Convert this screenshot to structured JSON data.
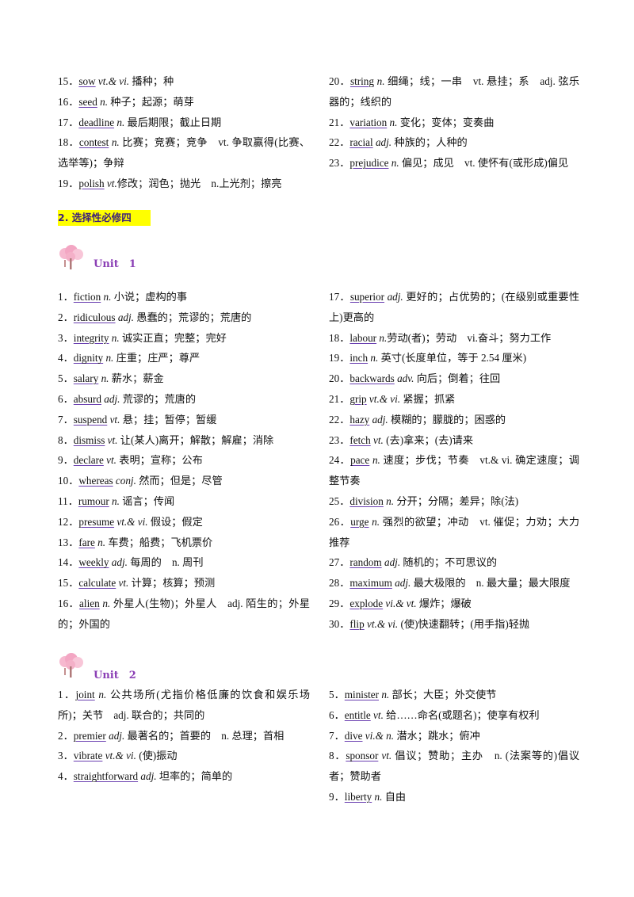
{
  "top_block": {
    "left": [
      {
        "num": "15．",
        "word": "sow",
        "pos": "vt.& vi.",
        "def": " 播种；种"
      },
      {
        "num": "16．",
        "word": "seed",
        "pos": "n.",
        "def": " 种子；起源；萌芽"
      },
      {
        "num": "17．",
        "word": "deadline",
        "pos": "n.",
        "def": " 最后期限；截止日期"
      },
      {
        "num": "18．",
        "word": "contest",
        "pos": "n.",
        "def": " 比赛；竞赛；竞争　vt. 争取赢得(比赛、选举等)；争辩"
      },
      {
        "num": "19．",
        "word": "polish",
        "pos": "vt.",
        "def": "修改；润色；抛光　n.上光剂；擦亮"
      }
    ],
    "right": [
      {
        "num": "20．",
        "word": "string",
        "pos": "n.",
        "def": " 细绳；线；一串　vt. 悬挂；系　adj. 弦乐器的；线织的"
      },
      {
        "num": "21．",
        "word": "variation",
        "pos": "n.",
        "def": " 变化；变体；变奏曲"
      },
      {
        "num": "22．",
        "word": "racial",
        "pos": "adj.",
        "def": " 种族的；人种的"
      },
      {
        "num": "23．",
        "word": "prejudice",
        "pos": "n.",
        "def": " 偏见；成见　vt. 使怀有(或形成)偏见"
      }
    ]
  },
  "section_title": "2. 选择性必修四",
  "unit1": {
    "label": "Unit　1",
    "left": [
      {
        "num": "1．",
        "word": "fiction",
        "pos": "n.",
        "def": " 小说；虚构的事"
      },
      {
        "num": "2．",
        "word": "ridiculous",
        "pos": "adj.",
        "def": " 愚蠢的；荒谬的；荒唐的"
      },
      {
        "num": "3．",
        "word": "integrity",
        "pos": "n.",
        "def": " 诚实正直；完整；完好"
      },
      {
        "num": "4．",
        "word": "dignity",
        "pos": "n.",
        "def": " 庄重；庄严；尊严"
      },
      {
        "num": "5．",
        "word": "salary",
        "pos": "n.",
        "def": " 薪水；薪金"
      },
      {
        "num": "6．",
        "word": "absurd",
        "pos": "adj.",
        "def": " 荒谬的；荒唐的"
      },
      {
        "num": "7．",
        "word": "suspend",
        "pos": "vt.",
        "def": " 悬；挂；暂停；暂缓"
      },
      {
        "num": "8．",
        "word": "dismiss",
        "pos": "vt.",
        "def": " 让(某人)离开；解散；解雇；消除"
      },
      {
        "num": "9．",
        "word": "declare",
        "pos": "vt.",
        "def": " 表明；宣称；公布"
      },
      {
        "num": "10．",
        "word": "whereas",
        "pos": "conj.",
        "def": " 然而；但是；尽管"
      },
      {
        "num": "11．",
        "word": "rumour",
        "pos": "n.",
        "def": " 谣言；传闻"
      },
      {
        "num": "12．",
        "word": "presume",
        "pos": "vt.& vi.",
        "def": " 假设；假定"
      },
      {
        "num": "13．",
        "word": "fare",
        "pos": "n.",
        "def": " 车费；船费；飞机票价"
      },
      {
        "num": "14．",
        "word": "weekly",
        "pos": "adj.",
        "def": " 每周的　n. 周刊"
      },
      {
        "num": "15．",
        "word": "calculate",
        "pos": "vt.",
        "def": " 计算；核算；预测"
      },
      {
        "num": "16．",
        "word": "alien",
        "pos": "n.",
        "def": " 外星人(生物)；外星人　adj. 陌生的；外星的；外国的"
      }
    ],
    "right": [
      {
        "num": "17．",
        "word": "superior",
        "pos": "adj.",
        "def": " 更好的；占优势的；(在级别或重要性上)更高的"
      },
      {
        "num": "18．",
        "word": "labour",
        "pos": "n.",
        "def": "劳动(者)；劳动　vi.奋斗；努力工作"
      },
      {
        "num": "19．",
        "word": "inch",
        "pos": "n.",
        "def": " 英寸(长度单位，等于 2.54 厘米)"
      },
      {
        "num": "20．",
        "word": "backwards",
        "pos": "adv.",
        "def": " 向后；倒着；往回"
      },
      {
        "num": "21．",
        "word": "grip",
        "pos": "vt.& vi.",
        "def": " 紧握；抓紧"
      },
      {
        "num": "22．",
        "word": "hazy",
        "pos": "adj.",
        "def": " 模糊的；朦胧的；困惑的"
      },
      {
        "num": "23．",
        "word": "fetch",
        "pos": "vt.",
        "def": " (去)拿来；(去)请来"
      },
      {
        "num": "24．",
        "word": "pace",
        "pos": "n.",
        "def": " 速度；步伐；节奏　vt.& vi. 确定速度；调整节奏"
      },
      {
        "num": "25．",
        "word": "division",
        "pos": "n.",
        "def": " 分开；分隔；差异；除(法)"
      },
      {
        "num": "26．",
        "word": "urge",
        "pos": "n.",
        "def": " 强烈的欲望；冲动　vt. 催促；力劝；大力推荐"
      },
      {
        "num": "27．",
        "word": "random",
        "pos": "adj.",
        "def": " 随机的；不可思议的"
      },
      {
        "num": "28．",
        "word": "maximum",
        "pos": "adj.",
        "def": " 最大极限的　n. 最大量；最大限度"
      },
      {
        "num": "29．",
        "word": "explode",
        "pos": "vi.& vt.",
        "def": " 爆炸；爆破"
      },
      {
        "num": "30．",
        "word": "flip",
        "pos": "vt.& vi.",
        "def": " (使)快速翻转；(用手指)轻抛"
      }
    ]
  },
  "unit2": {
    "label": "Unit　2",
    "left": [
      {
        "num": "1．",
        "word": "joint",
        "pos": "n.",
        "def": " 公共场所(尤指价格低廉的饮食和娱乐场所)；关节　adj. 联合的；共同的"
      },
      {
        "num": "2．",
        "word": "premier",
        "pos": "adj.",
        "def": " 最著名的；首要的　n. 总理；首相"
      },
      {
        "num": "3．",
        "word": "vibrate",
        "pos": "vt.& vi.",
        "def": " (使)振动"
      },
      {
        "num": "4．",
        "word": "straightforward",
        "pos": "adj.",
        "def": " 坦率的；简单的"
      }
    ],
    "right": [
      {
        "num": "5．",
        "word": "minister",
        "pos": "n.",
        "def": " 部长；大臣；外交使节"
      },
      {
        "num": "6．",
        "word": "entitle",
        "pos": "vt.",
        "def": " 给……命名(或题名)；使享有权利"
      },
      {
        "num": "7．",
        "word": "dive",
        "pos": "vi.& n.",
        "def": " 潜水；跳水；俯冲"
      },
      {
        "num": "8．",
        "word": "sponsor",
        "pos": "vt.",
        "def": " 倡议；赞助；主办　n. (法案等的)倡议者；赞助者"
      },
      {
        "num": "9．",
        "word": "liberty",
        "pos": "n.",
        "def": " 自由"
      }
    ]
  },
  "colors": {
    "section_bg": "#ffff00",
    "section_text": "#3c1f7a",
    "unit_text": "#8b3fb5",
    "word_underline": "#6a3fb0"
  }
}
